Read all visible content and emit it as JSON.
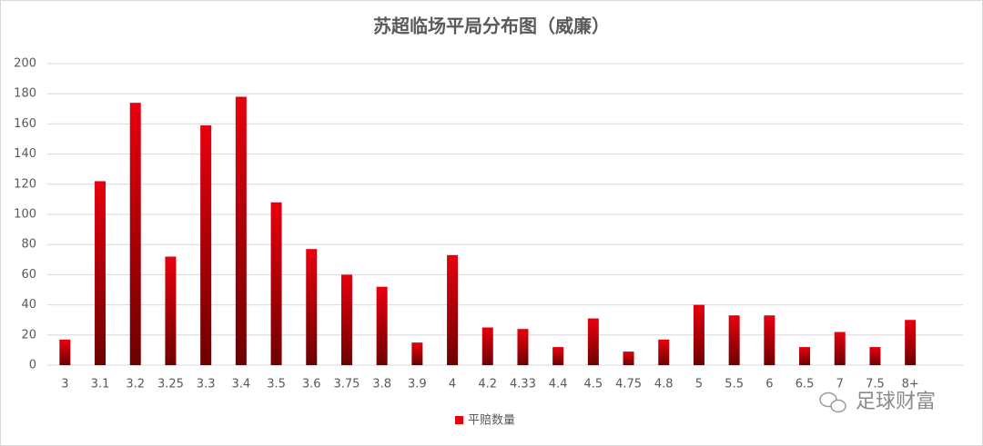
{
  "chart_data": {
    "type": "bar",
    "title": "苏超临场平局分布图（威廉）",
    "categories": [
      "3",
      "3.1",
      "3.2",
      "3.25",
      "3.3",
      "3.4",
      "3.5",
      "3.6",
      "3.75",
      "3.8",
      "3.9",
      "4",
      "4.2",
      "4.33",
      "4.4",
      "4.5",
      "4.75",
      "4.8",
      "5",
      "5.5",
      "6",
      "6.5",
      "7",
      "7.5",
      "8+"
    ],
    "series": [
      {
        "name": "平赔数量",
        "color": "#e8000e",
        "values": [
          17,
          122,
          174,
          72,
          159,
          178,
          108,
          77,
          60,
          52,
          15,
          73,
          25,
          24,
          12,
          31,
          9,
          17,
          40,
          33,
          33,
          12,
          22,
          12,
          30
        ]
      }
    ],
    "ylim": [
      0,
      200
    ],
    "yticks": [
      0,
      20,
      40,
      60,
      80,
      100,
      120,
      140,
      160,
      180,
      200
    ],
    "grid": true,
    "legend": "bottom",
    "watermark": "足球财富"
  }
}
